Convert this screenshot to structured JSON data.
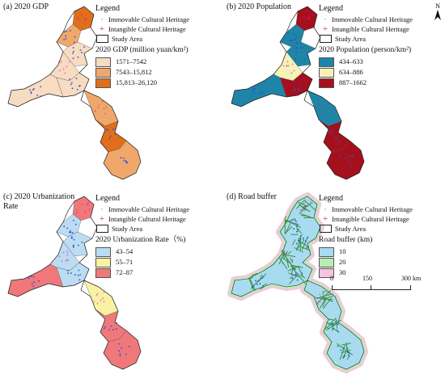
{
  "panels": [
    {
      "id": "a",
      "title": "(a) 2020 GDP",
      "legend_title": "Legend",
      "point_legend": [
        "Immovable Cultural Heritage",
        "Intangible Cultural Heritage"
      ],
      "study_area_label": "Study Area",
      "class_title": "2020 GDP (million yuan/km²)",
      "classes": [
        {
          "label": "1571–7542",
          "color": "#f7dcc2"
        },
        {
          "label": "7543–15,812",
          "color": "#f0a86a"
        },
        {
          "label": "15,813–26,120",
          "color": "#e06e1a"
        }
      ]
    },
    {
      "id": "b",
      "title": "(b) 2020 Population",
      "legend_title": "Legend",
      "point_legend": [
        "Immovable Cultural Heritage",
        "Intangible Cultural Heritage"
      ],
      "study_area_label": "Study Area",
      "class_title": "2020 Population (person/km²)",
      "classes": [
        {
          "label": "434–633",
          "color": "#1f85a8"
        },
        {
          "label": "634–886",
          "color": "#f6f2b8"
        },
        {
          "label": "887–1662",
          "color": "#a5101c"
        }
      ]
    },
    {
      "id": "c",
      "title": "(c) 2020 Urbanization Rate",
      "legend_title": "Legend",
      "point_legend": [
        "Immovable Cultural Heritage",
        "Intangible Cultural Heritage"
      ],
      "study_area_label": "Study Area",
      "class_title": "2020 Urbanization Rate（%)",
      "classes": [
        {
          "label": "43–54",
          "color": "#bcdcf2"
        },
        {
          "label": "55–71",
          "color": "#f8f2a4"
        },
        {
          "label": "72–87",
          "color": "#f0787a"
        }
      ]
    },
    {
      "id": "d",
      "title": "(d)   Road buffer",
      "legend_title": "Legend",
      "point_legend": [
        "Immovable Cultural Heritage",
        "Intangible Cultural Heritage"
      ],
      "study_area_label": "Study Area",
      "class_title": "Road buffer (km)",
      "classes": [
        {
          "label": "10",
          "color": "#a9dbf0"
        },
        {
          "label": "20",
          "color": "#b8efb0"
        },
        {
          "label": "30",
          "color": "#f6c4e0"
        }
      ],
      "scale_labels": [
        "0",
        "150",
        "300 km"
      ]
    }
  ],
  "north_label": "N",
  "map_colors": {
    "a": {
      "base": "#f7dcc2",
      "mid": "#f0a86a",
      "high": "#e06e1a"
    },
    "b": {
      "base": "#f6f2b8",
      "low": "#1f85a8",
      "high": "#a5101c"
    },
    "c": {
      "base": "#bcdcf2",
      "mid": "#f8f2a4",
      "high": "#f0787a"
    },
    "d": {
      "ring30": "#f6c4e0",
      "ring20": "#b8efb0",
      "ring10": "#a9dbf0",
      "roads": "#2e8b2e"
    }
  }
}
